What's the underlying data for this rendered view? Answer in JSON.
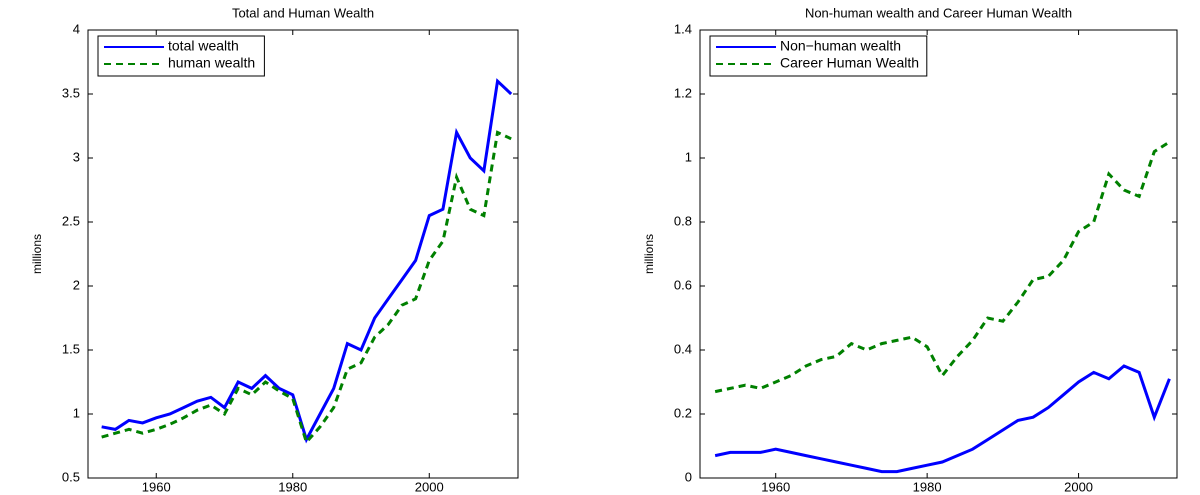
{
  "chart_data": [
    {
      "type": "line",
      "title": "Total and Human Wealth",
      "y_label": "millions",
      "x": [
        1952,
        1954,
        1956,
        1958,
        1960,
        1962,
        1964,
        1966,
        1968,
        1970,
        1972,
        1974,
        1976,
        1978,
        1980,
        1982,
        1984,
        1986,
        1988,
        1990,
        1992,
        1994,
        1996,
        1998,
        2000,
        2002,
        2004,
        2006,
        2008,
        2010,
        2012
      ],
      "series": [
        {
          "name": "total wealth",
          "color": "#0000ff",
          "line_style": "solid",
          "values": [
            0.9,
            0.88,
            0.95,
            0.93,
            0.97,
            1.0,
            1.05,
            1.1,
            1.13,
            1.05,
            1.25,
            1.2,
            1.3,
            1.2,
            1.15,
            0.8,
            1.0,
            1.2,
            1.55,
            1.5,
            1.75,
            1.9,
            2.05,
            2.2,
            2.55,
            2.6,
            3.2,
            3.0,
            2.9,
            3.6,
            3.5
          ]
        },
        {
          "name": "human wealth",
          "color": "#008000",
          "line_style": "dashed",
          "values": [
            0.82,
            0.85,
            0.88,
            0.85,
            0.88,
            0.92,
            0.97,
            1.03,
            1.07,
            1.0,
            1.2,
            1.15,
            1.25,
            1.18,
            1.12,
            0.78,
            0.9,
            1.05,
            1.35,
            1.4,
            1.6,
            1.7,
            1.85,
            1.9,
            2.2,
            2.35,
            2.85,
            2.6,
            2.55,
            3.2,
            3.15
          ]
        }
      ],
      "xlim": [
        1950,
        2013
      ],
      "xticks": [
        1960,
        1980,
        2000
      ],
      "ylim": [
        0.5,
        4
      ],
      "yticks": [
        0.5,
        1,
        1.5,
        2,
        2.5,
        3,
        3.5,
        4
      ],
      "legend": "upper-left"
    },
    {
      "type": "line",
      "title": "Non-human wealth and Career Human Wealth",
      "y_label": "millions",
      "x": [
        1952,
        1954,
        1956,
        1958,
        1960,
        1962,
        1964,
        1966,
        1968,
        1970,
        1972,
        1974,
        1976,
        1978,
        1980,
        1982,
        1984,
        1986,
        1988,
        1990,
        1992,
        1994,
        1996,
        1998,
        2000,
        2002,
        2004,
        2006,
        2008,
        2010,
        2012
      ],
      "series": [
        {
          "name": "Non−human wealth",
          "color": "#0000ff",
          "line_style": "solid",
          "values": [
            0.07,
            0.08,
            0.08,
            0.08,
            0.09,
            0.08,
            0.07,
            0.06,
            0.05,
            0.04,
            0.03,
            0.02,
            0.02,
            0.03,
            0.04,
            0.05,
            0.07,
            0.09,
            0.12,
            0.15,
            0.18,
            0.19,
            0.22,
            0.26,
            0.3,
            0.33,
            0.31,
            0.35,
            0.33,
            0.19,
            0.31
          ]
        },
        {
          "name": "Career Human Wealth",
          "color": "#008000",
          "line_style": "dashed",
          "values": [
            0.27,
            0.28,
            0.29,
            0.28,
            0.3,
            0.32,
            0.35,
            0.37,
            0.38,
            0.42,
            0.4,
            0.42,
            0.43,
            0.44,
            0.41,
            0.32,
            0.38,
            0.43,
            0.5,
            0.49,
            0.55,
            0.62,
            0.63,
            0.68,
            0.77,
            0.8,
            0.95,
            0.9,
            0.88,
            1.02,
            1.05
          ]
        }
      ],
      "xlim": [
        1950,
        2013
      ],
      "xticks": [
        1960,
        1980,
        2000
      ],
      "ylim": [
        0,
        1.4
      ],
      "yticks": [
        0,
        0.2,
        0.4,
        0.6,
        0.8,
        1,
        1.2,
        1.4
      ],
      "legend": "upper-left"
    }
  ]
}
